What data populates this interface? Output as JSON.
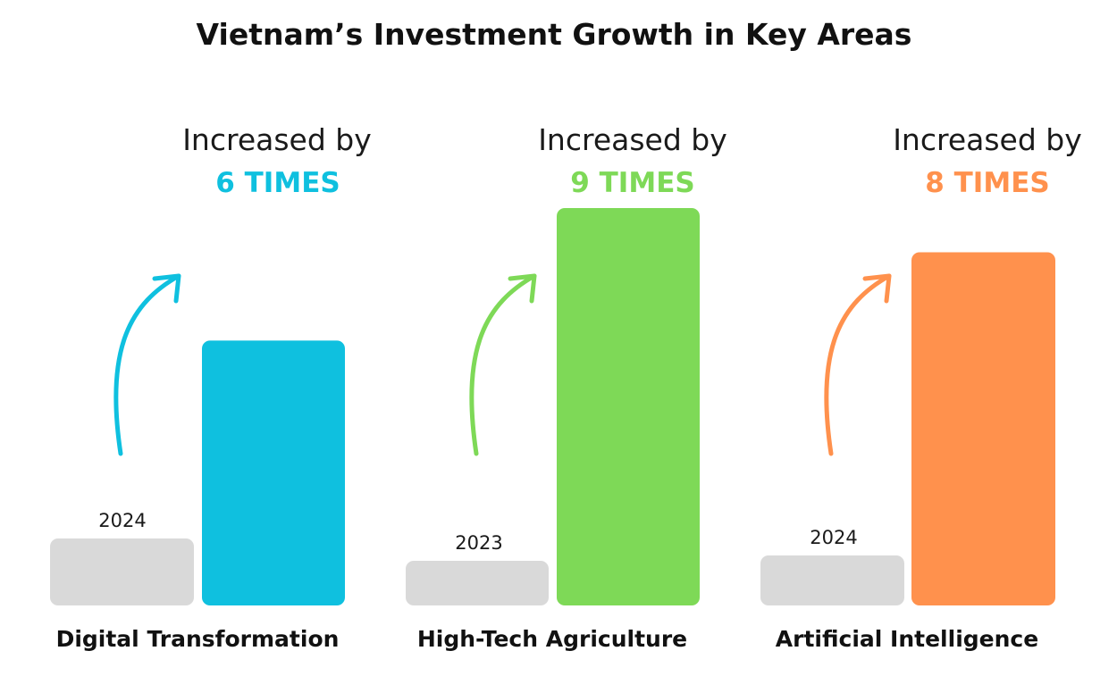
{
  "chart_data": {
    "type": "bar",
    "title": "Vietnam’s Investment Growth in Key Areas",
    "categories": [
      "Digital Transformation",
      "High-Tech Agriculture",
      "Artificial Intelligence"
    ],
    "groups": [
      {
        "category": "Digital Transformation",
        "base_label": "2024",
        "base_value": 1,
        "multiplier": 6,
        "increase_text": "Increased by",
        "multiplier_text": "6 TIMES",
        "color": "#0FC0DF"
      },
      {
        "category": "High-Tech Agriculture",
        "base_label": "2023",
        "base_value": 1,
        "multiplier": 9,
        "increase_text": "Increased by",
        "multiplier_text": "9 TIMES",
        "color": "#7ED957"
      },
      {
        "category": "Artificial Intelligence",
        "base_label": "2024",
        "base_value": 1,
        "multiplier": 8,
        "increase_text": "Increased by",
        "multiplier_text": "8 TIMES",
        "color": "#FF914D"
      }
    ],
    "base_color": "#D9D9D9",
    "xlabel": "",
    "ylabel": ""
  }
}
